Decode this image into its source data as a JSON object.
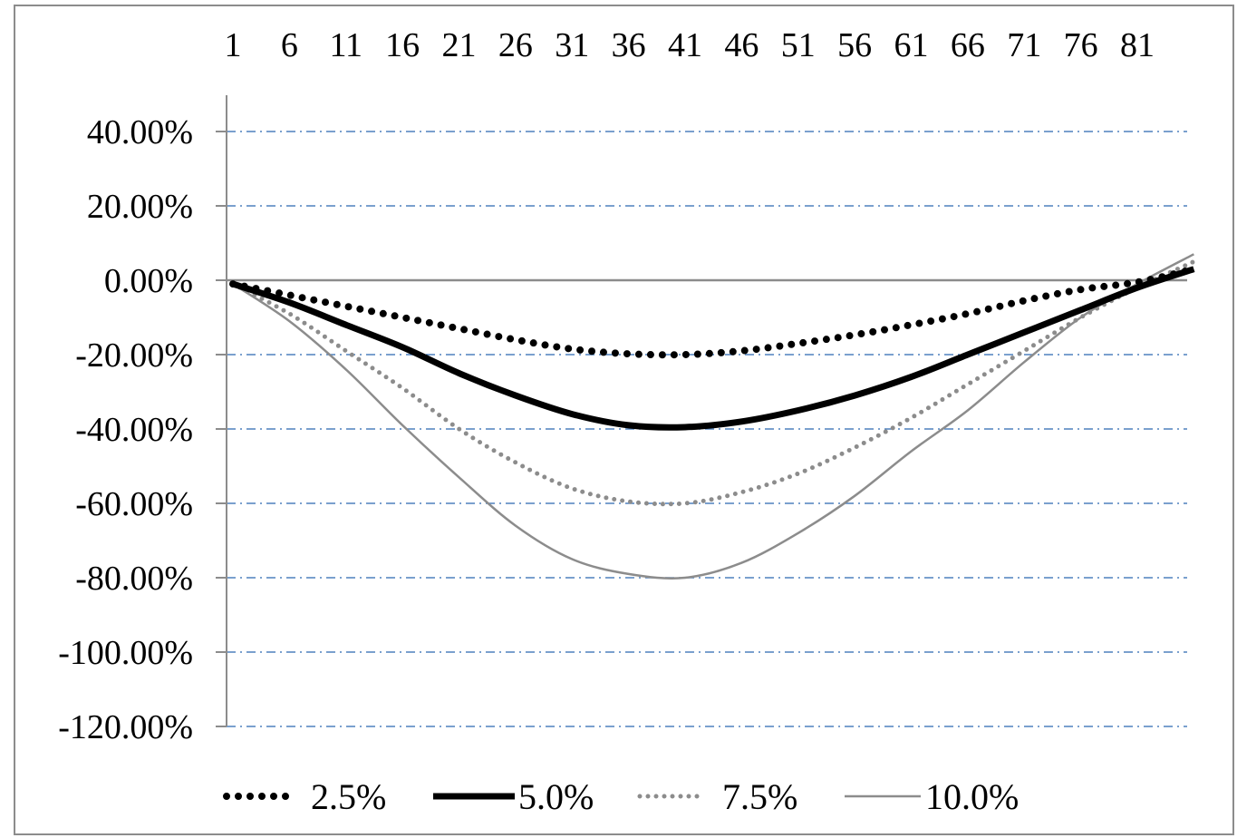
{
  "chart_data": {
    "type": "line",
    "title": "",
    "xlabel": "",
    "ylabel": "",
    "x_ticks": [
      "1",
      "6",
      "11",
      "16",
      "21",
      "26",
      "31",
      "36",
      "41",
      "46",
      "51",
      "56",
      "61",
      "66",
      "71",
      "76",
      "81"
    ],
    "y_ticks": [
      "40.00%",
      "20.00%",
      "0.00%",
      "-20.00%",
      "-40.00%",
      "-60.00%",
      "-80.00%",
      "-100.00%",
      "-120.00%"
    ],
    "ylim": [
      -1.2,
      0.4
    ],
    "x_range": [
      1,
      86
    ],
    "x_axis_position": "top",
    "grid": "horizontal dash-dot",
    "legend_position": "bottom",
    "x": [
      1,
      6,
      11,
      16,
      21,
      26,
      31,
      36,
      41,
      46,
      51,
      56,
      61,
      66,
      71,
      76,
      81,
      86
    ],
    "series": [
      {
        "name": "2.5%",
        "style": "dotted-black",
        "values": [
          -0.01,
          -0.04,
          -0.07,
          -0.1,
          -0.13,
          -0.16,
          -0.185,
          -0.198,
          -0.2,
          -0.19,
          -0.17,
          -0.147,
          -0.12,
          -0.09,
          -0.055,
          -0.025,
          -0.005,
          0.03
        ]
      },
      {
        "name": "5.0%",
        "style": "thick-black",
        "values": [
          -0.01,
          -0.06,
          -0.12,
          -0.18,
          -0.25,
          -0.31,
          -0.36,
          -0.39,
          -0.395,
          -0.38,
          -0.35,
          -0.31,
          -0.26,
          -0.2,
          -0.14,
          -0.08,
          -0.02,
          0.03
        ]
      },
      {
        "name": "7.5%",
        "style": "dotted-gray",
        "values": [
          -0.01,
          -0.09,
          -0.19,
          -0.29,
          -0.4,
          -0.49,
          -0.56,
          -0.595,
          -0.6,
          -0.57,
          -0.52,
          -0.45,
          -0.37,
          -0.28,
          -0.19,
          -0.1,
          -0.02,
          0.05
        ]
      },
      {
        "name": "10.0%",
        "style": "thin-gray",
        "values": [
          -0.01,
          -0.11,
          -0.24,
          -0.39,
          -0.53,
          -0.66,
          -0.75,
          -0.79,
          -0.8,
          -0.76,
          -0.68,
          -0.58,
          -0.46,
          -0.35,
          -0.22,
          -0.1,
          -0.01,
          0.07
        ]
      }
    ]
  }
}
